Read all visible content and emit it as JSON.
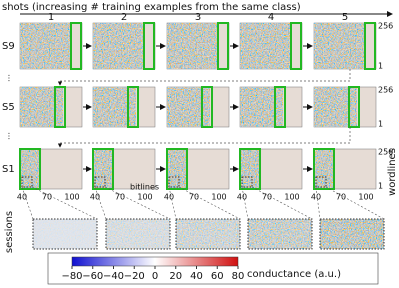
{
  "header": {
    "title": "shots (increasing # training examples from the same class)"
  },
  "shots": {
    "labels": [
      "1",
      "2",
      "3",
      "4",
      "5"
    ]
  },
  "sessions": {
    "axis_label": "sessions",
    "rows": [
      {
        "label": "S9",
        "top": "256",
        "bottom": "1"
      },
      {
        "label": "S5",
        "top": "256",
        "bottom": "1"
      },
      {
        "label": "S1",
        "top": "256",
        "bottom": "1"
      }
    ]
  },
  "axes": {
    "x_label": "bitlines",
    "y_label": "wordlines",
    "x_ticks": [
      "40",
      "70",
      "100"
    ]
  },
  "colorbar": {
    "label": "conductance (a.u.)",
    "lim": [
      -80,
      80
    ],
    "ticks": [
      {
        "value": -80,
        "label": "−80"
      },
      {
        "value": -60,
        "label": "−60"
      },
      {
        "value": -40,
        "label": "−40"
      },
      {
        "value": -20,
        "label": "−20"
      },
      0,
      20,
      40,
      60,
      80
    ]
  }
}
